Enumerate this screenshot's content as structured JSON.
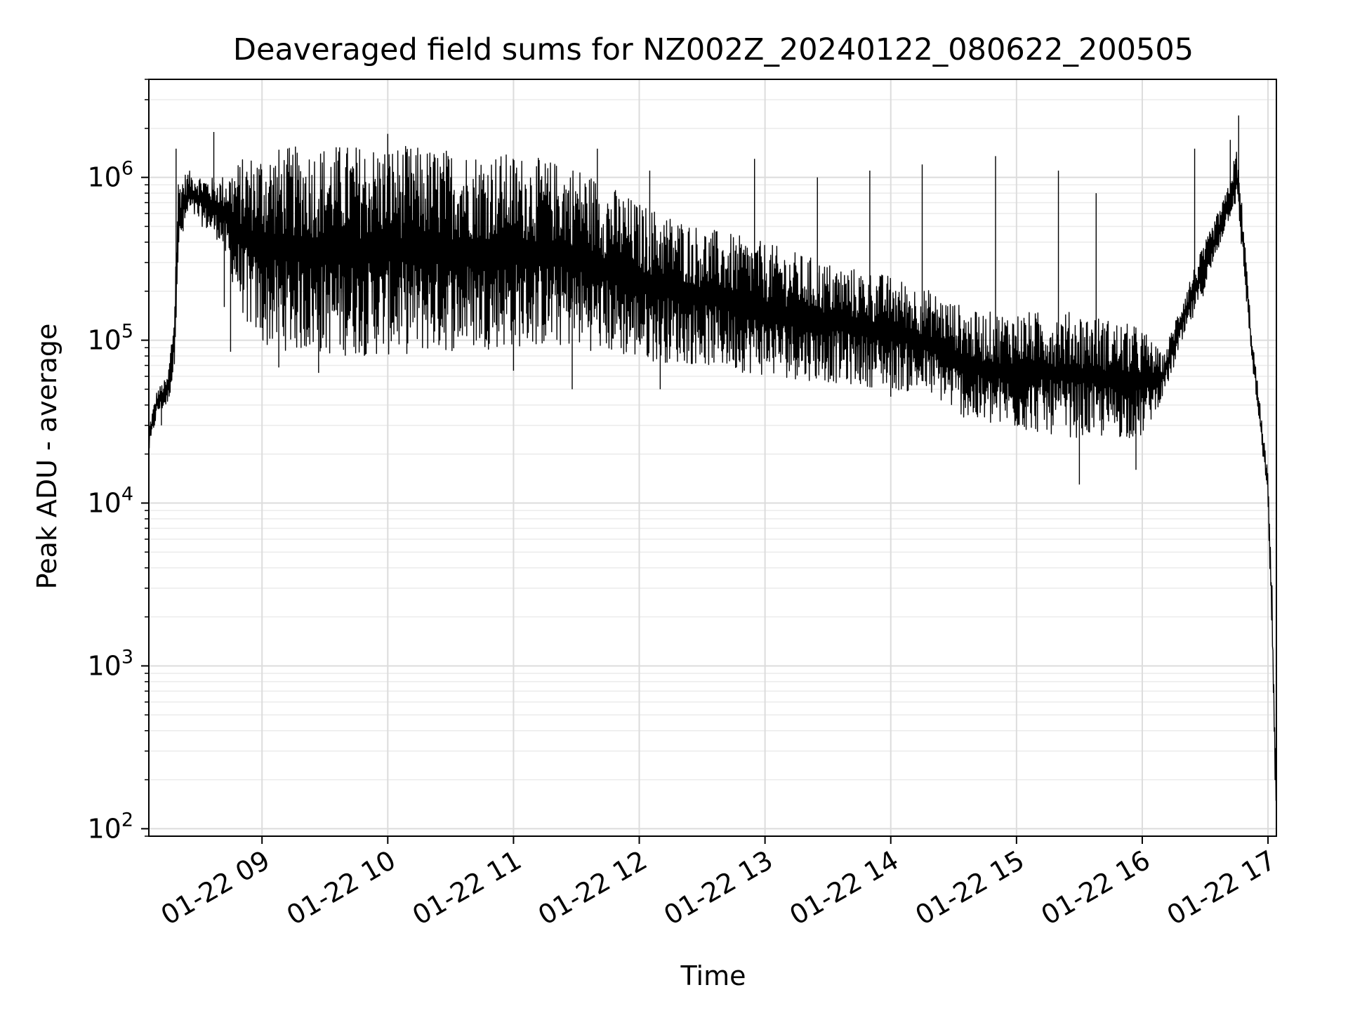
{
  "chart_data": {
    "type": "line",
    "title": "Deaveraged field sums for NZ002Z_20240122_080622_200505",
    "xlabel": "Time",
    "ylabel": "Peak ADU - average",
    "yscale": "log",
    "ylim": [
      90,
      4000000
    ],
    "xlim": [
      "2024-01-22 08:06",
      "2024-01-22 17:04"
    ],
    "grid": "major and minor",
    "line_color": "#000000",
    "x_ticks": [
      {
        "x": "2024-01-22 09:00",
        "label": "01-22 09"
      },
      {
        "x": "2024-01-22 10:00",
        "label": "01-22 10"
      },
      {
        "x": "2024-01-22 11:00",
        "label": "01-22 11"
      },
      {
        "x": "2024-01-22 12:00",
        "label": "01-22 12"
      },
      {
        "x": "2024-01-22 13:00",
        "label": "01-22 13"
      },
      {
        "x": "2024-01-22 14:00",
        "label": "01-22 14"
      },
      {
        "x": "2024-01-22 15:00",
        "label": "01-22 15"
      },
      {
        "x": "2024-01-22 16:00",
        "label": "01-22 16"
      },
      {
        "x": "2024-01-22 17:00",
        "label": "01-22 17"
      }
    ],
    "y_ticks": [
      {
        "value": 100,
        "base": "10",
        "exp": "2"
      },
      {
        "value": 1000,
        "base": "10",
        "exp": "3"
      },
      {
        "value": 10000,
        "base": "10",
        "exp": "4"
      },
      {
        "value": 100000,
        "base": "10",
        "exp": "5"
      },
      {
        "value": 1000000,
        "base": "10",
        "exp": "6"
      }
    ],
    "series": [
      {
        "envelope": [
          {
            "x": "2024-01-22 08:06",
            "low": 20000,
            "high": 30000
          },
          {
            "x": "2024-01-22 08:10",
            "low": 35000,
            "high": 50000
          },
          {
            "x": "2024-01-22 08:15",
            "low": 40000,
            "high": 60000
          },
          {
            "x": "2024-01-22 08:18",
            "low": 60000,
            "high": 150000
          },
          {
            "x": "2024-01-22 08:20",
            "low": 300000,
            "high": 1000000
          },
          {
            "x": "2024-01-22 08:25",
            "low": 600000,
            "high": 1100000
          },
          {
            "x": "2024-01-22 08:35",
            "low": 450000,
            "high": 1000000
          },
          {
            "x": "2024-01-22 08:40",
            "low": 400000,
            "high": 1000000
          },
          {
            "x": "2024-01-22 08:50",
            "low": 150000,
            "high": 1300000
          },
          {
            "x": "2024-01-22 09:00",
            "low": 90000,
            "high": 1500000
          },
          {
            "x": "2024-01-22 09:30",
            "low": 80000,
            "high": 1600000
          },
          {
            "x": "2024-01-22 10:00",
            "low": 80000,
            "high": 1600000
          },
          {
            "x": "2024-01-22 10:30",
            "low": 85000,
            "high": 1500000
          },
          {
            "x": "2024-01-22 11:00",
            "low": 90000,
            "high": 1400000
          },
          {
            "x": "2024-01-22 11:30",
            "low": 90000,
            "high": 1200000
          },
          {
            "x": "2024-01-22 12:00",
            "low": 75000,
            "high": 700000
          },
          {
            "x": "2024-01-22 12:30",
            "low": 70000,
            "high": 500000
          },
          {
            "x": "2024-01-22 13:00",
            "low": 60000,
            "high": 400000
          },
          {
            "x": "2024-01-22 13:30",
            "low": 55000,
            "high": 300000
          },
          {
            "x": "2024-01-22 14:00",
            "low": 50000,
            "high": 250000
          },
          {
            "x": "2024-01-22 14:20",
            "low": 45000,
            "high": 200000
          },
          {
            "x": "2024-01-22 14:40",
            "low": 30000,
            "high": 150000
          },
          {
            "x": "2024-01-22 15:00",
            "low": 28000,
            "high": 150000
          },
          {
            "x": "2024-01-22 15:30",
            "low": 25000,
            "high": 150000
          },
          {
            "x": "2024-01-22 16:00",
            "low": 25000,
            "high": 120000
          },
          {
            "x": "2024-01-22 16:10",
            "low": 45000,
            "high": 80000
          },
          {
            "x": "2024-01-22 16:20",
            "low": 100000,
            "high": 200000
          },
          {
            "x": "2024-01-22 16:30",
            "low": 200000,
            "high": 400000
          },
          {
            "x": "2024-01-22 16:40",
            "low": 500000,
            "high": 800000
          },
          {
            "x": "2024-01-22 16:45",
            "low": 700000,
            "high": 1500000
          },
          {
            "x": "2024-01-22 16:48",
            "low": 300000,
            "high": 600000
          },
          {
            "x": "2024-01-22 16:52",
            "low": 80000,
            "high": 120000
          },
          {
            "x": "2024-01-22 17:00",
            "low": 10000,
            "high": 15000
          },
          {
            "x": "2024-01-22 17:02",
            "low": 1000,
            "high": 3000
          },
          {
            "x": "2024-01-22 17:04",
            "low": 90,
            "high": 200
          }
        ],
        "spikes": [
          {
            "x": "2024-01-22 08:12",
            "value": 30000
          },
          {
            "x": "2024-01-22 08:19",
            "value": 1500000
          },
          {
            "x": "2024-01-22 08:37",
            "value": 1900000
          },
          {
            "x": "2024-01-22 08:42",
            "value": 160000
          },
          {
            "x": "2024-01-22 08:45",
            "value": 85000
          },
          {
            "x": "2024-01-22 08:53",
            "value": 130000
          },
          {
            "x": "2024-01-22 09:08",
            "value": 68000
          },
          {
            "x": "2024-01-22 09:27",
            "value": 63000
          },
          {
            "x": "2024-01-22 10:00",
            "value": 1850000
          },
          {
            "x": "2024-01-22 11:00",
            "value": 65000
          },
          {
            "x": "2024-01-22 11:28",
            "value": 50000
          },
          {
            "x": "2024-01-22 11:40",
            "value": 1500000
          },
          {
            "x": "2024-01-22 12:05",
            "value": 1100000
          },
          {
            "x": "2024-01-22 12:10",
            "value": 50000
          },
          {
            "x": "2024-01-22 12:55",
            "value": 1300000
          },
          {
            "x": "2024-01-22 13:25",
            "value": 1000000
          },
          {
            "x": "2024-01-22 13:50",
            "value": 1100000
          },
          {
            "x": "2024-01-22 14:00",
            "value": 45000
          },
          {
            "x": "2024-01-22 14:15",
            "value": 1200000
          },
          {
            "x": "2024-01-22 14:50",
            "value": 1350000
          },
          {
            "x": "2024-01-22 15:20",
            "value": 1100000
          },
          {
            "x": "2024-01-22 15:30",
            "value": 13000
          },
          {
            "x": "2024-01-22 15:38",
            "value": 800000
          },
          {
            "x": "2024-01-22 15:57",
            "value": 16000
          },
          {
            "x": "2024-01-22 16:25",
            "value": 1500000
          },
          {
            "x": "2024-01-22 16:42",
            "value": 1700000
          },
          {
            "x": "2024-01-22 16:46",
            "value": 2400000
          }
        ]
      }
    ]
  }
}
